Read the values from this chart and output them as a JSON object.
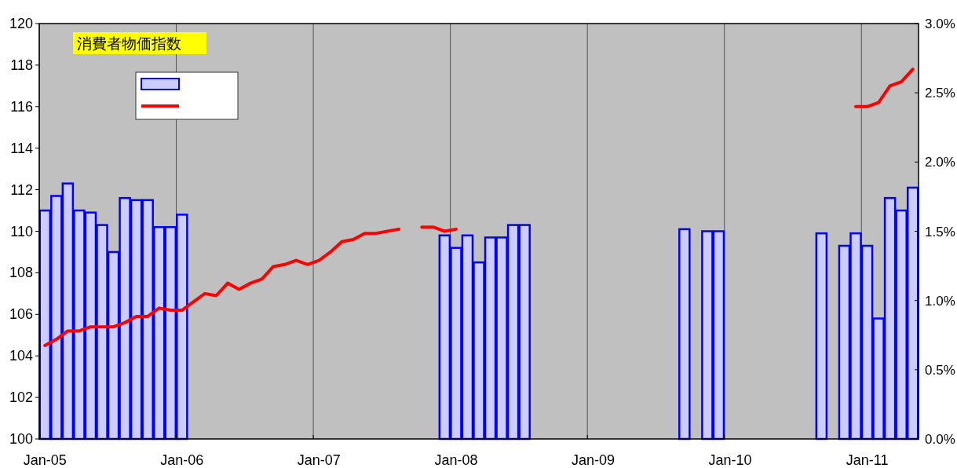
{
  "chart_data": {
    "type": "bar",
    "title": "消費者物価指数",
    "categories": [
      "Jan-05",
      null,
      null,
      null,
      null,
      null,
      null,
      null,
      null,
      null,
      null,
      null,
      "Jan-06",
      null,
      null,
      null,
      null,
      null,
      null,
      null,
      null,
      null,
      null,
      null,
      "Jan-07",
      null,
      null,
      null,
      null,
      null,
      null,
      null,
      null,
      null,
      null,
      null,
      "Jan-08",
      null,
      null,
      null,
      null,
      null,
      null,
      null,
      null,
      null,
      null,
      null,
      "Jan-09",
      null,
      null,
      null,
      null,
      null,
      null,
      null,
      null,
      null,
      null,
      null,
      "Jan-10",
      null,
      null,
      null,
      null,
      null,
      null,
      null,
      null,
      null,
      null,
      null,
      "Jan-11",
      null,
      null,
      null,
      null
    ],
    "series": [
      {
        "color": "#ccccff",
        "values": [
          111.0,
          111.7,
          112.3,
          111.0,
          110.9,
          110.3,
          109.0,
          111.6,
          111.5,
          111.5,
          110.2,
          110.2,
          110.8,
          null,
          null,
          null,
          null,
          null,
          null,
          null,
          null,
          null,
          null,
          null,
          null,
          null,
          null,
          null,
          null,
          null,
          null,
          null,
          null,
          null,
          null,
          109.8,
          109.2,
          109.8,
          108.5,
          109.7,
          109.7,
          110.3,
          110.3,
          null,
          null,
          null,
          null,
          null,
          null,
          null,
          null,
          null,
          null,
          null,
          null,
          null,
          110.1,
          null,
          110.0,
          110.0,
          null,
          null,
          null,
          null,
          null,
          null,
          null,
          null,
          109.9,
          null,
          109.3,
          109.9,
          109.3,
          105.8,
          111.6,
          111.0,
          112.1
        ]
      },
      {
        "type": "line",
        "color": "#ff0000",
        "values": [
          104.5,
          104.8,
          105.2,
          105.2,
          105.4,
          105.4,
          105.4,
          105.6,
          105.9,
          105.9,
          106.3,
          106.2,
          106.2,
          106.6,
          107.0,
          106.9,
          107.5,
          107.2,
          107.5,
          107.7,
          108.3,
          108.4,
          108.6,
          108.4,
          108.6,
          109.0,
          109.5,
          109.6,
          109.9,
          109.9,
          110.0,
          110.1,
          null,
          110.2,
          110.2,
          110.0,
          110.1,
          null,
          null,
          null,
          null,
          null,
          null,
          null,
          null,
          null,
          null,
          null,
          null,
          null,
          null,
          null,
          null,
          null,
          null,
          null,
          null,
          null,
          null,
          null,
          null,
          null,
          null,
          null,
          null,
          null,
          null,
          null,
          null,
          null,
          null,
          116.0,
          116.0,
          116.2,
          117.0,
          117.2,
          117.8
        ]
      }
    ],
    "ylim": [
      100,
      120
    ],
    "yticks": [
      100,
      102,
      104,
      106,
      108,
      110,
      112,
      114,
      116,
      118,
      120
    ],
    "y2lim": [
      0,
      3
    ],
    "y2ticks": [
      {
        "value": 0,
        "label": "0.0%"
      },
      {
        "value": 0.5,
        "label": "0.5%"
      },
      {
        "value": 1,
        "label": "1.0%"
      },
      {
        "value": 1.5,
        "label": "1.5%"
      },
      {
        "value": 2,
        "label": "2.0%"
      },
      {
        "value": 2.5,
        "label": "2.5%"
      },
      {
        "value": 3,
        "label": "3.0%"
      }
    ],
    "grid": "x"
  }
}
